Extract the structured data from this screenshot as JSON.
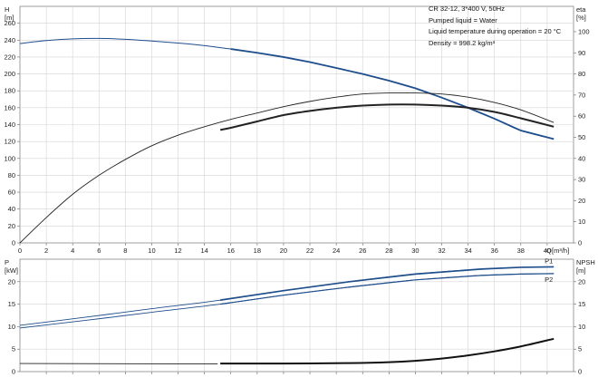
{
  "info": {
    "pump": "CR 32-12, 3*400 V, 50Hz",
    "liquid": "Pumped liquid = Water",
    "temperature": "Liquid temperature during operation = 20 °C",
    "density": "Density = 998.2 kg/m³"
  },
  "chart_data": [
    {
      "type": "line",
      "title": "",
      "x_axis": {
        "label_name": "Q",
        "label_unit": "[m³/h]",
        "range": [
          0,
          42
        ],
        "ticks": [
          "0",
          "2",
          "4",
          "6",
          "8",
          "10",
          "12",
          "14",
          "16",
          "18",
          "20",
          "22",
          "24",
          "26",
          "28",
          "30",
          "32",
          "34",
          "36",
          "38",
          "40"
        ]
      },
      "y_left": {
        "label_name": "H",
        "label_unit": "[m]",
        "range": [
          0,
          280
        ],
        "ticks": [
          "0",
          "20",
          "40",
          "60",
          "80",
          "100",
          "120",
          "140",
          "160",
          "180",
          "200",
          "220",
          "240",
          "260"
        ]
      },
      "y_right": {
        "label_name": "eta",
        "label_unit": "[%]",
        "range": [
          0,
          112
        ],
        "ticks": [
          "0",
          "10",
          "20",
          "30",
          "40",
          "50",
          "60",
          "70",
          "80",
          "90",
          "100"
        ]
      },
      "grid": true,
      "series": [
        {
          "role": "H-curve",
          "axis": "left",
          "color": "#1f4e8c",
          "x": [
            0,
            2,
            4,
            6,
            8,
            10,
            12,
            14,
            16,
            18,
            20,
            22,
            24,
            26,
            28,
            30,
            32,
            34,
            36,
            38,
            40.5
          ],
          "y": [
            236,
            239.5,
            241.5,
            242,
            241,
            239,
            236.5,
            233.5,
            229.5,
            225,
            220,
            214,
            207,
            200,
            192,
            183,
            172,
            160,
            147,
            133,
            123
          ]
        },
        {
          "role": "eta-curve-full",
          "axis": "right",
          "color": "#222222",
          "x": [
            0,
            2,
            4,
            6,
            8,
            10,
            12,
            14,
            16,
            18,
            20,
            22,
            24,
            26,
            28,
            30,
            32,
            34,
            36,
            38,
            40.5
          ],
          "y": [
            0,
            12,
            23,
            32,
            39.5,
            46,
            51,
            55,
            58.5,
            61.5,
            64.5,
            67,
            69,
            70.5,
            71,
            71,
            70.5,
            69,
            66.5,
            63,
            57
          ]
        },
        {
          "role": "eta-curve-duty",
          "axis": "right",
          "color": "#222222",
          "x": [
            15.2,
            16,
            18,
            20,
            22,
            24,
            26,
            28,
            30,
            32,
            34,
            36,
            38,
            40.5
          ],
          "y": [
            53.5,
            54.5,
            57.5,
            60.5,
            62.5,
            64,
            65,
            65.5,
            65.5,
            65,
            64,
            62,
            59,
            55
          ]
        }
      ]
    },
    {
      "type": "line",
      "title": "",
      "x_axis": {
        "range": [
          0,
          42
        ]
      },
      "y_left": {
        "label_name": "P",
        "label_unit": "[kW]",
        "range": [
          0,
          25
        ],
        "ticks": [
          "0",
          "5",
          "10",
          "15",
          "20"
        ]
      },
      "y_right": {
        "label_name": "NPSH",
        "label_unit": "[m]",
        "range": [
          0,
          25
        ],
        "ticks": [
          "0",
          "5",
          "10",
          "15",
          "20"
        ]
      },
      "grid": true,
      "series": [
        {
          "name": "P1",
          "role": "P1",
          "axis": "left",
          "color": "#1f4e8c",
          "x": [
            0,
            5,
            10,
            15.2,
            20,
            25,
            30,
            35,
            38,
            40.5
          ],
          "y": [
            10.3,
            12.1,
            14,
            15.9,
            18,
            20,
            21.7,
            22.8,
            23.2,
            23.3
          ]
        },
        {
          "name": "P2",
          "role": "P2",
          "axis": "left",
          "color": "#1f4e8c",
          "x": [
            0,
            5,
            10,
            15.2,
            20,
            25,
            30,
            35,
            38,
            40.5
          ],
          "y": [
            9.7,
            11.4,
            13.2,
            15.0,
            17,
            18.8,
            20.4,
            21.4,
            21.7,
            21.8
          ]
        },
        {
          "role": "NPSH-low",
          "axis": "right",
          "color": "#222222",
          "x": [
            0,
            15
          ],
          "y": [
            1.8,
            1.7
          ]
        },
        {
          "role": "NPSH-duty",
          "axis": "right",
          "color": "#111111",
          "x": [
            15.2,
            20,
            25,
            28,
            30,
            32,
            34,
            36,
            38,
            40.5
          ],
          "y": [
            1.8,
            1.8,
            1.9,
            2.1,
            2.4,
            2.9,
            3.6,
            4.5,
            5.6,
            7.3
          ]
        }
      ]
    }
  ]
}
